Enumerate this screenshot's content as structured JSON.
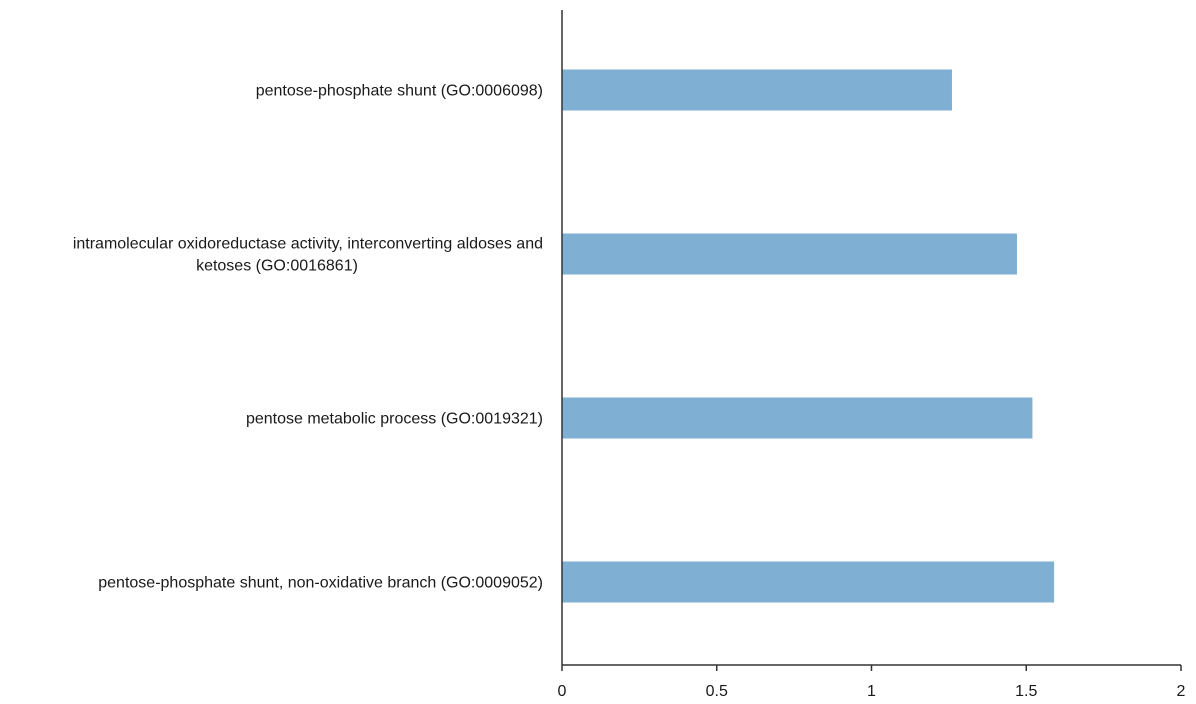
{
  "chart_data": {
    "type": "bar",
    "orientation": "horizontal",
    "title": "",
    "xlabel": "",
    "ylabel": "",
    "categories": [
      [
        "pentose-phosphate shunt (GO:0006098)"
      ],
      [
        "intramolecular oxidoreductase activity, interconverting aldoses and",
        "ketoses (GO:0016861)"
      ],
      [
        "pentose metabolic process (GO:0019321)"
      ],
      [
        "pentose-phosphate shunt, non-oxidative branch (GO:0009052)"
      ]
    ],
    "values": [
      1.26,
      1.47,
      1.52,
      1.59
    ],
    "xlim": [
      0,
      2
    ],
    "x_ticks": [
      "0",
      "0.5",
      "1",
      "1.5",
      "2"
    ],
    "bar_color": "#7fafd2",
    "axis_color": "#333333",
    "grid": false,
    "legend": "none"
  }
}
